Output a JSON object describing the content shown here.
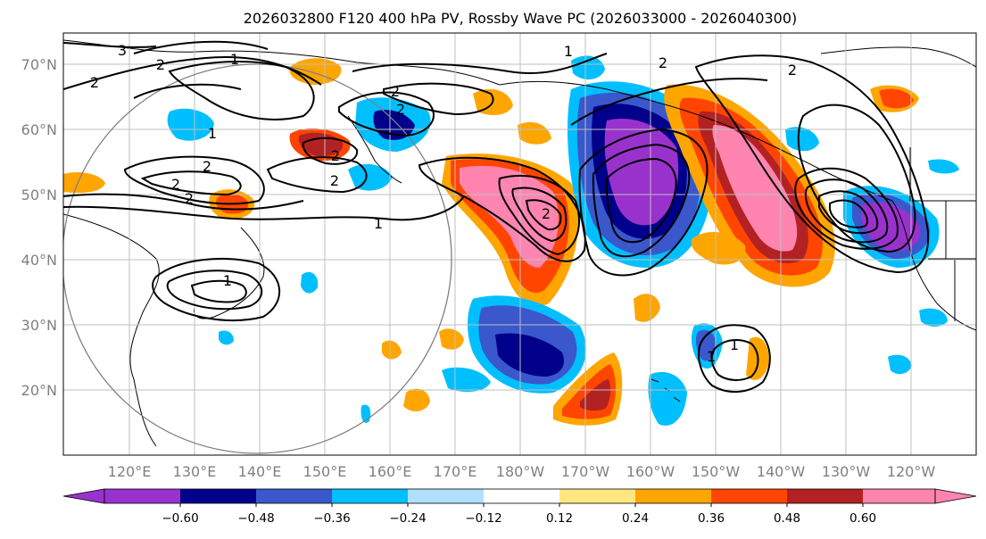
{
  "title": "2026032800 F120 400 hPa PV, Rossby Wave PC (2026033000 - 2026040300)",
  "map": {
    "lat_labels": [
      "70°N",
      "60°N",
      "50°N",
      "40°N",
      "30°N",
      "20°N"
    ],
    "lon_labels": [
      "120°E",
      "130°E",
      "140°E",
      "150°E",
      "160°E",
      "170°E",
      "180°W",
      "170°W",
      "160°W",
      "150°W",
      "140°W",
      "130°W",
      "120°W"
    ],
    "contour_labels": [
      "3",
      "2",
      "1",
      "2",
      "2",
      "1",
      "2",
      "2",
      "2",
      "2",
      "1",
      "2",
      "2",
      "1",
      "2",
      "1",
      "2",
      "2",
      "1",
      "1"
    ]
  },
  "colorbar": {
    "tick_labels": [
      "−0.60",
      "−0.48",
      "−0.36",
      "−0.24",
      "−0.12",
      "0.12",
      "0.24",
      "0.36",
      "0.48",
      "0.60"
    ],
    "colors": [
      "#9932cc",
      "#00008b",
      "#3a57cc",
      "#00bfff",
      "#b0e0ff",
      "#ffffff",
      "#ffe680",
      "#ffa500",
      "#ff4500",
      "#b22222",
      "#ff85b0"
    ]
  }
}
